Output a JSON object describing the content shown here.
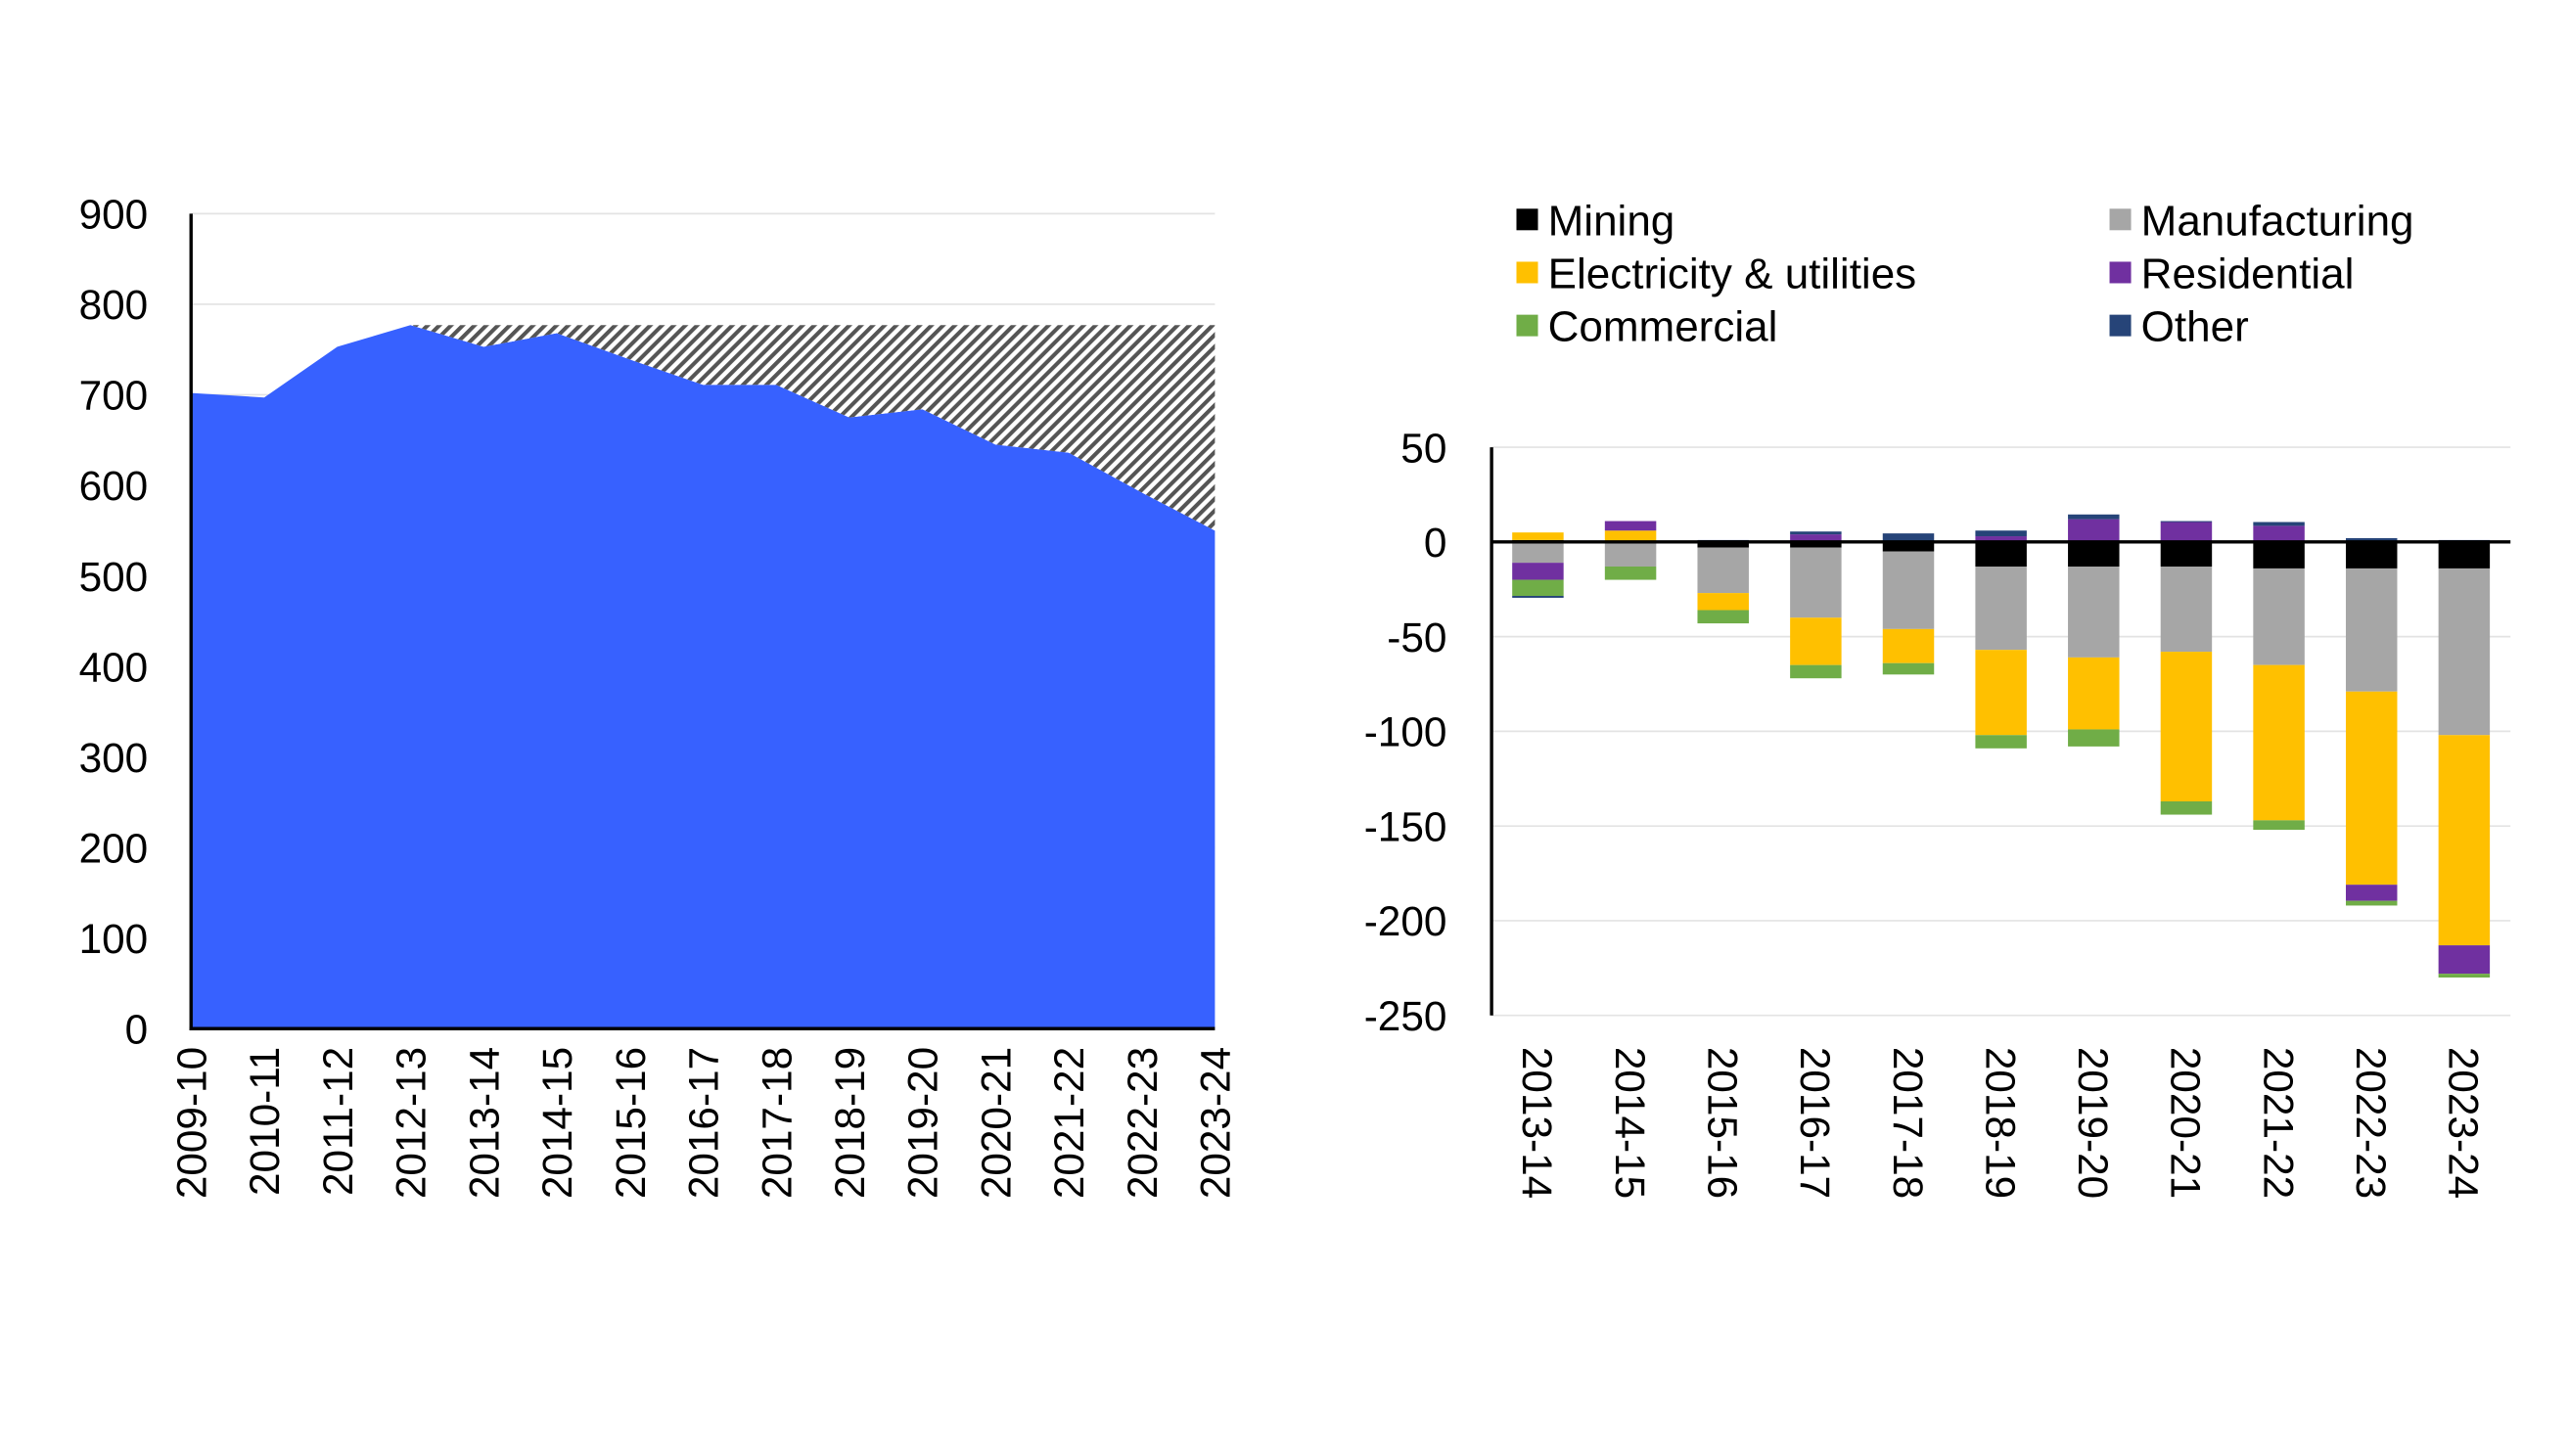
{
  "chart_data": [
    {
      "type": "area",
      "categories": [
        "2009-10",
        "2010-11",
        "2011-12",
        "2012-13",
        "2013-14",
        "2014-15",
        "2015-16",
        "2016-17",
        "2017-18",
        "2018-19",
        "2019-20",
        "2020-21",
        "2021-22",
        "2022-23",
        "2023-24"
      ],
      "series": [
        {
          "values": [
            702,
            697,
            753,
            777,
            753,
            768,
            739,
            711,
            711,
            675,
            684,
            645,
            636,
            592,
            550
          ],
          "color": "#3761ff",
          "fill": "solid"
        },
        {
          "values": [
            null,
            null,
            null,
            777,
            777,
            777,
            777,
            777,
            777,
            777,
            777,
            777,
            777,
            777,
            777
          ],
          "color": "#555555",
          "fill": "hatched"
        }
      ],
      "ylim": [
        0,
        900
      ],
      "yticks": [
        "0",
        "100",
        "200",
        "300",
        "400",
        "500",
        "600",
        "700",
        "800",
        "900"
      ],
      "grid": true
    },
    {
      "type": "bar",
      "stacked": true,
      "categories": [
        "2013-14",
        "2014-15",
        "2015-16",
        "2016-17",
        "2017-18",
        "2018-19",
        "2019-20",
        "2020-21",
        "2021-22",
        "2022-23",
        "2023-24"
      ],
      "series": [
        {
          "name": "Mining",
          "color": "#000000",
          "values": [
            1,
            0,
            -3,
            -3,
            -5,
            -13,
            -13,
            -13,
            -14,
            -14,
            -14
          ]
        },
        {
          "name": "Manufacturing",
          "color": "#a6a6a6",
          "values": [
            -11,
            -13,
            -24,
            -37,
            -41,
            -44,
            -48,
            -45,
            -51,
            -65,
            -88
          ]
        },
        {
          "name": "Electricity & utilities",
          "color": "#ffc000",
          "values": [
            4,
            6,
            -9,
            -25,
            -18,
            -45,
            -38,
            -79,
            -82,
            -102,
            -111
          ]
        },
        {
          "name": "Residential",
          "color": "#7030a0",
          "values": [
            -9,
            5,
            0,
            4,
            0,
            3,
            12,
            10.5,
            8.5,
            -8.5,
            -15
          ]
        },
        {
          "name": "Commercial",
          "color": "#70ad47",
          "values": [
            -8.5,
            -7,
            -7,
            -7,
            -6,
            -7,
            -9,
            -7,
            -5,
            -2.5,
            -2
          ]
        },
        {
          "name": "Other",
          "color": "#264478",
          "values": [
            -1,
            0,
            1,
            1.5,
            4.5,
            3,
            2.5,
            0.5,
            2,
            2,
            1
          ]
        }
      ],
      "ylim": [
        -250,
        50
      ],
      "yticks": [
        "50",
        "0",
        "-50",
        "-100",
        "-150",
        "-200",
        "-250"
      ],
      "legend": "top",
      "grid": true
    }
  ]
}
